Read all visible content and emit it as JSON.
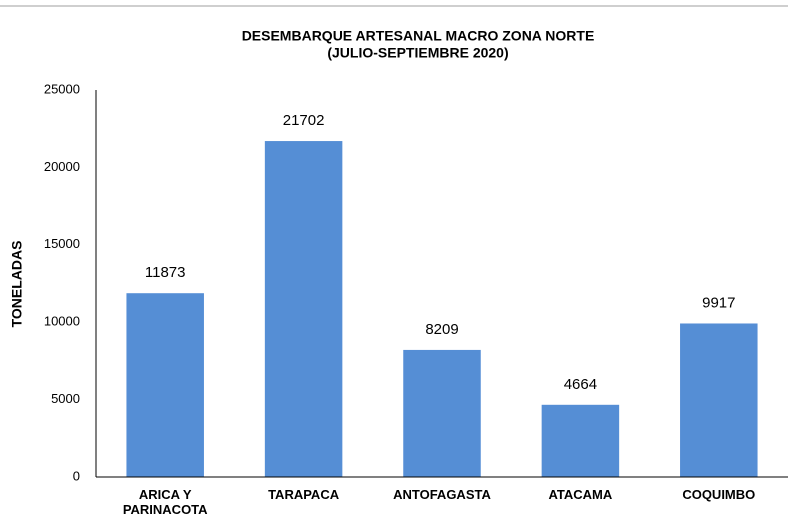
{
  "chart_data": {
    "type": "bar",
    "title": "DESEMBARQUE ARTESANAL  MACRO ZONA NORTE",
    "subtitle": "(JULIO-SEPTIEMBRE 2020)",
    "y_label": "TONELADAS",
    "categories": [
      "ARICA Y PARINACOTA",
      "TARAPACA",
      "ANTOFAGASTA",
      "ATACAMA",
      "COQUIMBO"
    ],
    "values": [
      11873,
      21702,
      8209,
      4664,
      9917
    ],
    "color": "#558ed5",
    "ylim": [
      0,
      25000
    ],
    "yticks": [
      0,
      5000,
      10000,
      15000,
      20000,
      25000
    ],
    "grid": false
  }
}
